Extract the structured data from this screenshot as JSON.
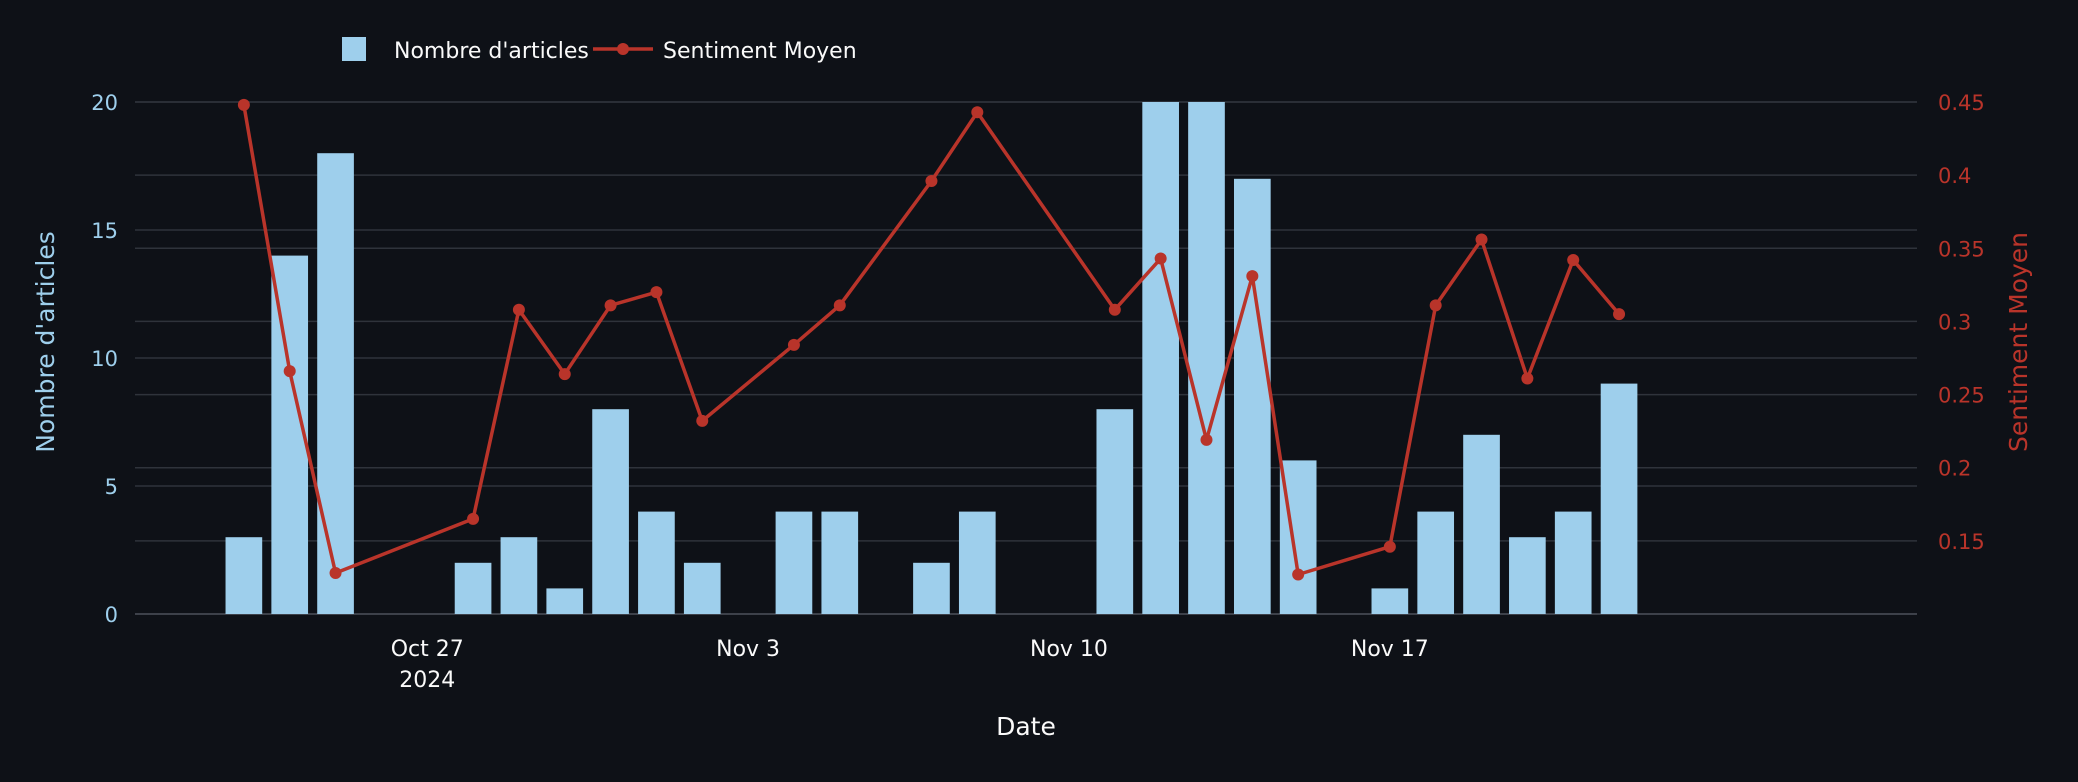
{
  "chart_data": {
    "type": "bar+line",
    "title": "",
    "xlabel": "Date",
    "x_ticks": [
      {
        "date": "2024-10-27",
        "label": "Oct 27",
        "sub": "2024"
      },
      {
        "date": "2024-11-03",
        "label": "Nov 3",
        "sub": ""
      },
      {
        "date": "2024-11-10",
        "label": "Nov 10",
        "sub": ""
      },
      {
        "date": "2024-11-17",
        "label": "Nov 17",
        "sub": ""
      }
    ],
    "x_range": [
      "2024-10-20T15:00",
      "2024-11-28T12:00"
    ],
    "legend": {
      "position": "top-left",
      "items": [
        {
          "name": "Nombre d'articles",
          "kind": "bar"
        },
        {
          "name": "Sentiment Moyen",
          "kind": "line"
        }
      ]
    },
    "y_left": {
      "label": "Nombre d'articles",
      "range": [
        0,
        20
      ],
      "ticks": [
        0,
        5,
        10,
        15,
        20
      ],
      "tick_labels": [
        "0",
        "5",
        "10",
        "15",
        "20"
      ],
      "color": "#9ecfec"
    },
    "y_right": {
      "label": "Sentiment Moyen",
      "range": [
        0.1,
        0.45
      ],
      "ticks": [
        0.15,
        0.2,
        0.25,
        0.3,
        0.35,
        0.4,
        0.45
      ],
      "tick_labels": [
        "0.15",
        "0.2",
        "0.25",
        "0.3",
        "0.35",
        "0.4",
        "0.45"
      ],
      "color": "#b9342a"
    },
    "grid": true,
    "series": [
      {
        "name": "Nombre d'articles",
        "type": "bar",
        "axis": "left",
        "color": "#9ecfec",
        "points": [
          {
            "x": "2024-10-23",
            "y": 3
          },
          {
            "x": "2024-10-24",
            "y": 14
          },
          {
            "x": "2024-10-25",
            "y": 18
          },
          {
            "x": "2024-10-28",
            "y": 2
          },
          {
            "x": "2024-10-29",
            "y": 3
          },
          {
            "x": "2024-10-30",
            "y": 1
          },
          {
            "x": "2024-10-31",
            "y": 8
          },
          {
            "x": "2024-11-01",
            "y": 4
          },
          {
            "x": "2024-11-02",
            "y": 2
          },
          {
            "x": "2024-11-04",
            "y": 4
          },
          {
            "x": "2024-11-05",
            "y": 4
          },
          {
            "x": "2024-11-07",
            "y": 2
          },
          {
            "x": "2024-11-08",
            "y": 4
          },
          {
            "x": "2024-11-11",
            "y": 8
          },
          {
            "x": "2024-11-12",
            "y": 20
          },
          {
            "x": "2024-11-13",
            "y": 20
          },
          {
            "x": "2024-11-14",
            "y": 17
          },
          {
            "x": "2024-11-15",
            "y": 6
          },
          {
            "x": "2024-11-17",
            "y": 1
          },
          {
            "x": "2024-11-18",
            "y": 4
          },
          {
            "x": "2024-11-19",
            "y": 7
          },
          {
            "x": "2024-11-20",
            "y": 3
          },
          {
            "x": "2024-11-21",
            "y": 4
          },
          {
            "x": "2024-11-22",
            "y": 9
          }
        ]
      },
      {
        "name": "Sentiment Moyen",
        "type": "line",
        "axis": "right",
        "color": "#b9342a",
        "points": [
          {
            "x": "2024-10-23",
            "y": 0.448
          },
          {
            "x": "2024-10-24",
            "y": 0.266
          },
          {
            "x": "2024-10-25",
            "y": 0.128
          },
          {
            "x": "2024-10-28",
            "y": 0.165
          },
          {
            "x": "2024-10-29",
            "y": 0.308
          },
          {
            "x": "2024-10-30",
            "y": 0.264
          },
          {
            "x": "2024-10-31",
            "y": 0.311
          },
          {
            "x": "2024-11-01",
            "y": 0.32
          },
          {
            "x": "2024-11-02",
            "y": 0.232
          },
          {
            "x": "2024-11-04",
            "y": 0.284
          },
          {
            "x": "2024-11-05",
            "y": 0.311
          },
          {
            "x": "2024-11-07",
            "y": 0.396
          },
          {
            "x": "2024-11-08",
            "y": 0.443
          },
          {
            "x": "2024-11-11",
            "y": 0.308
          },
          {
            "x": "2024-11-12",
            "y": 0.343
          },
          {
            "x": "2024-11-13",
            "y": 0.219
          },
          {
            "x": "2024-11-14",
            "y": 0.331
          },
          {
            "x": "2024-11-15",
            "y": 0.127
          },
          {
            "x": "2024-11-17",
            "y": 0.146
          },
          {
            "x": "2024-11-18",
            "y": 0.311
          },
          {
            "x": "2024-11-19",
            "y": 0.356
          },
          {
            "x": "2024-11-20",
            "y": 0.261
          },
          {
            "x": "2024-11-21",
            "y": 0.342
          },
          {
            "x": "2024-11-22",
            "y": 0.305
          }
        ]
      }
    ]
  }
}
